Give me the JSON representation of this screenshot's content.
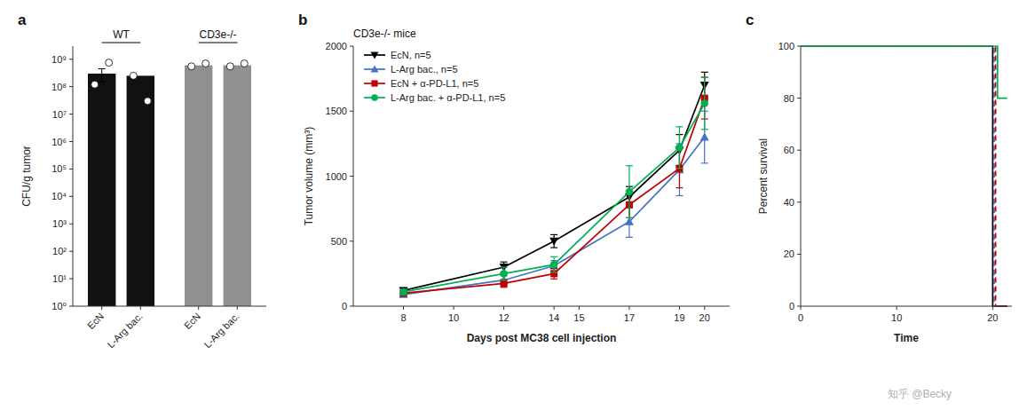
{
  "chart_data": [
    {
      "type": "bar",
      "panel": "a",
      "ylabel": "CFU/g tumor",
      "log": "y",
      "categories": [
        "EcN",
        "L-Arg bac.",
        "EcN",
        "L-Arg bac."
      ],
      "groups": [
        "WT",
        "WT",
        "CD3e-/-",
        "CD3e-/-"
      ],
      "series": [
        {
          "values": [
            300000000,
            250000000,
            600000000,
            600000000
          ],
          "colors": [
            "#111111",
            "#111111",
            "#909090",
            "#909090"
          ],
          "errors": [
            150000000,
            0,
            0,
            0
          ],
          "dots": [
            [
              120000000,
              750000000
            ],
            [
              250000000,
              30000000
            ],
            [
              550000000,
              700000000
            ],
            [
              550000000,
              700000000
            ]
          ]
        }
      ],
      "ylim": [
        1,
        3000000000
      ],
      "yticks": [
        {
          "value": 1,
          "label": "10⁰"
        },
        {
          "value": 10,
          "label": "10¹"
        },
        {
          "value": 100,
          "label": "10²"
        },
        {
          "value": 1000,
          "label": "10³"
        },
        {
          "value": 10000,
          "label": "10⁴"
        },
        {
          "value": 100000,
          "label": "10⁵"
        },
        {
          "value": 1000000,
          "label": "10⁶"
        },
        {
          "value": 10000000,
          "label": "10⁷"
        },
        {
          "value": 100000000,
          "label": "10⁸"
        },
        {
          "value": 1000000000,
          "label": "10⁹"
        }
      ]
    },
    {
      "type": "line",
      "panel": "b",
      "title": "CD3e-/- mice",
      "xlabel": "Days post MC38 cell injection",
      "ylabel": "Tumor volume (mm³)",
      "x": [
        8,
        12,
        14,
        17,
        19,
        20
      ],
      "series": [
        {
          "name": "EcN, n=5",
          "color": "#000000",
          "marker": "triangle-down",
          "values": [
            120,
            300,
            500,
            840,
            1200,
            1700
          ],
          "errors": [
            20,
            40,
            50,
            80,
            120,
            100
          ]
        },
        {
          "name": "L-Arg bac., n=5",
          "color": "#4472c4",
          "marker": "triangle-up",
          "values": [
            90,
            200,
            310,
            650,
            1050,
            1300
          ],
          "errors": [
            15,
            35,
            40,
            120,
            200,
            200
          ]
        },
        {
          "name": "EcN + α-PD-L1, n=5",
          "color": "#c00000",
          "marker": "square",
          "values": [
            100,
            175,
            250,
            780,
            1060,
            1600
          ],
          "errors": [
            20,
            30,
            40,
            100,
            150,
            160
          ]
        },
        {
          "name": "L-Arg bac. + α-PD-L1, n=5",
          "color": "#00b050",
          "marker": "circle",
          "values": [
            110,
            250,
            320,
            880,
            1220,
            1560
          ],
          "errors": [
            20,
            50,
            60,
            200,
            160,
            200
          ]
        }
      ],
      "xlim": [
        6,
        21
      ],
      "xticks": [
        8,
        10,
        12,
        14,
        15,
        17,
        19,
        20
      ],
      "ylim": [
        0,
        2000
      ],
      "yticks": [
        0,
        500,
        1000,
        1500,
        2000
      ],
      "legend": "top-left"
    },
    {
      "type": "line",
      "panel": "c",
      "xlabel": "Time",
      "ylabel": "Percent survival",
      "series": [
        {
          "color": "#000000",
          "line_style": "solid",
          "x": [
            0,
            20,
            20,
            21.5
          ],
          "values": [
            100,
            100,
            0,
            0
          ]
        },
        {
          "color": "#4472c4",
          "line_style": "dashed",
          "x": [
            0,
            20.15,
            20.15,
            21.5
          ],
          "values": [
            100,
            100,
            0,
            0
          ]
        },
        {
          "color": "#c00000",
          "line_style": "dashed",
          "x": [
            0,
            20.3,
            20.3,
            21.5
          ],
          "values": [
            100,
            100,
            0,
            0
          ]
        },
        {
          "color": "#00b050",
          "line_style": "solid",
          "x": [
            0,
            20.5,
            20.5,
            21.5
          ],
          "values": [
            100,
            100,
            80,
            80
          ]
        }
      ],
      "xlim": [
        0,
        22
      ],
      "xticks": [
        0,
        10,
        20
      ],
      "ylim": [
        0,
        100
      ],
      "yticks": [
        0,
        20,
        40,
        60,
        80,
        100
      ],
      "annotations": [
        "知乎 @Becky"
      ]
    }
  ]
}
